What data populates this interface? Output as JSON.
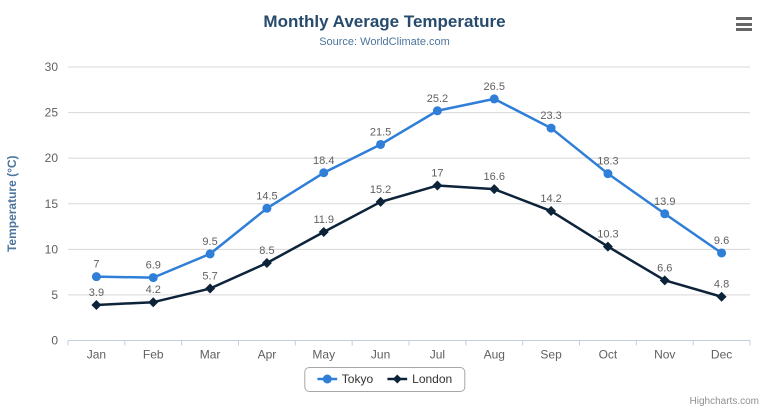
{
  "chart_data": {
    "type": "line",
    "title": "Monthly Average Temperature",
    "subtitle": "Source: WorldClimate.com",
    "xlabel": "",
    "ylabel": "Temperature (°C)",
    "ylim": [
      0,
      30
    ],
    "ytick_interval": 5,
    "grid": true,
    "legend_position": "bottom",
    "categories": [
      "Jan",
      "Feb",
      "Mar",
      "Apr",
      "May",
      "Jun",
      "Jul",
      "Aug",
      "Sep",
      "Oct",
      "Nov",
      "Dec"
    ],
    "series": [
      {
        "name": "Tokyo",
        "color": "#2f7ed8",
        "marker": "circle",
        "values": [
          7,
          6.9,
          9.5,
          14.5,
          18.4,
          21.5,
          25.2,
          26.5,
          23.3,
          18.3,
          13.9,
          9.6
        ]
      },
      {
        "name": "London",
        "color": "#0d233a",
        "marker": "diamond",
        "values": [
          3.9,
          4.2,
          5.7,
          8.5,
          11.9,
          15.2,
          17,
          16.6,
          14.2,
          10.3,
          6.6,
          4.8
        ]
      }
    ]
  },
  "credits": "Highcharts.com",
  "icons": {
    "context_menu": "hamburger-icon"
  },
  "colors": {
    "title": "#274b6d",
    "subtitle": "#4d759e",
    "axis_title": "#4d759e",
    "tick_label": "#606060",
    "data_label": "#606060",
    "gridline": "#d8d8d8",
    "axis_line": "#c0d0e0",
    "legend_text": "#333333",
    "credits_text": "#909090",
    "background": "#ffffff"
  }
}
